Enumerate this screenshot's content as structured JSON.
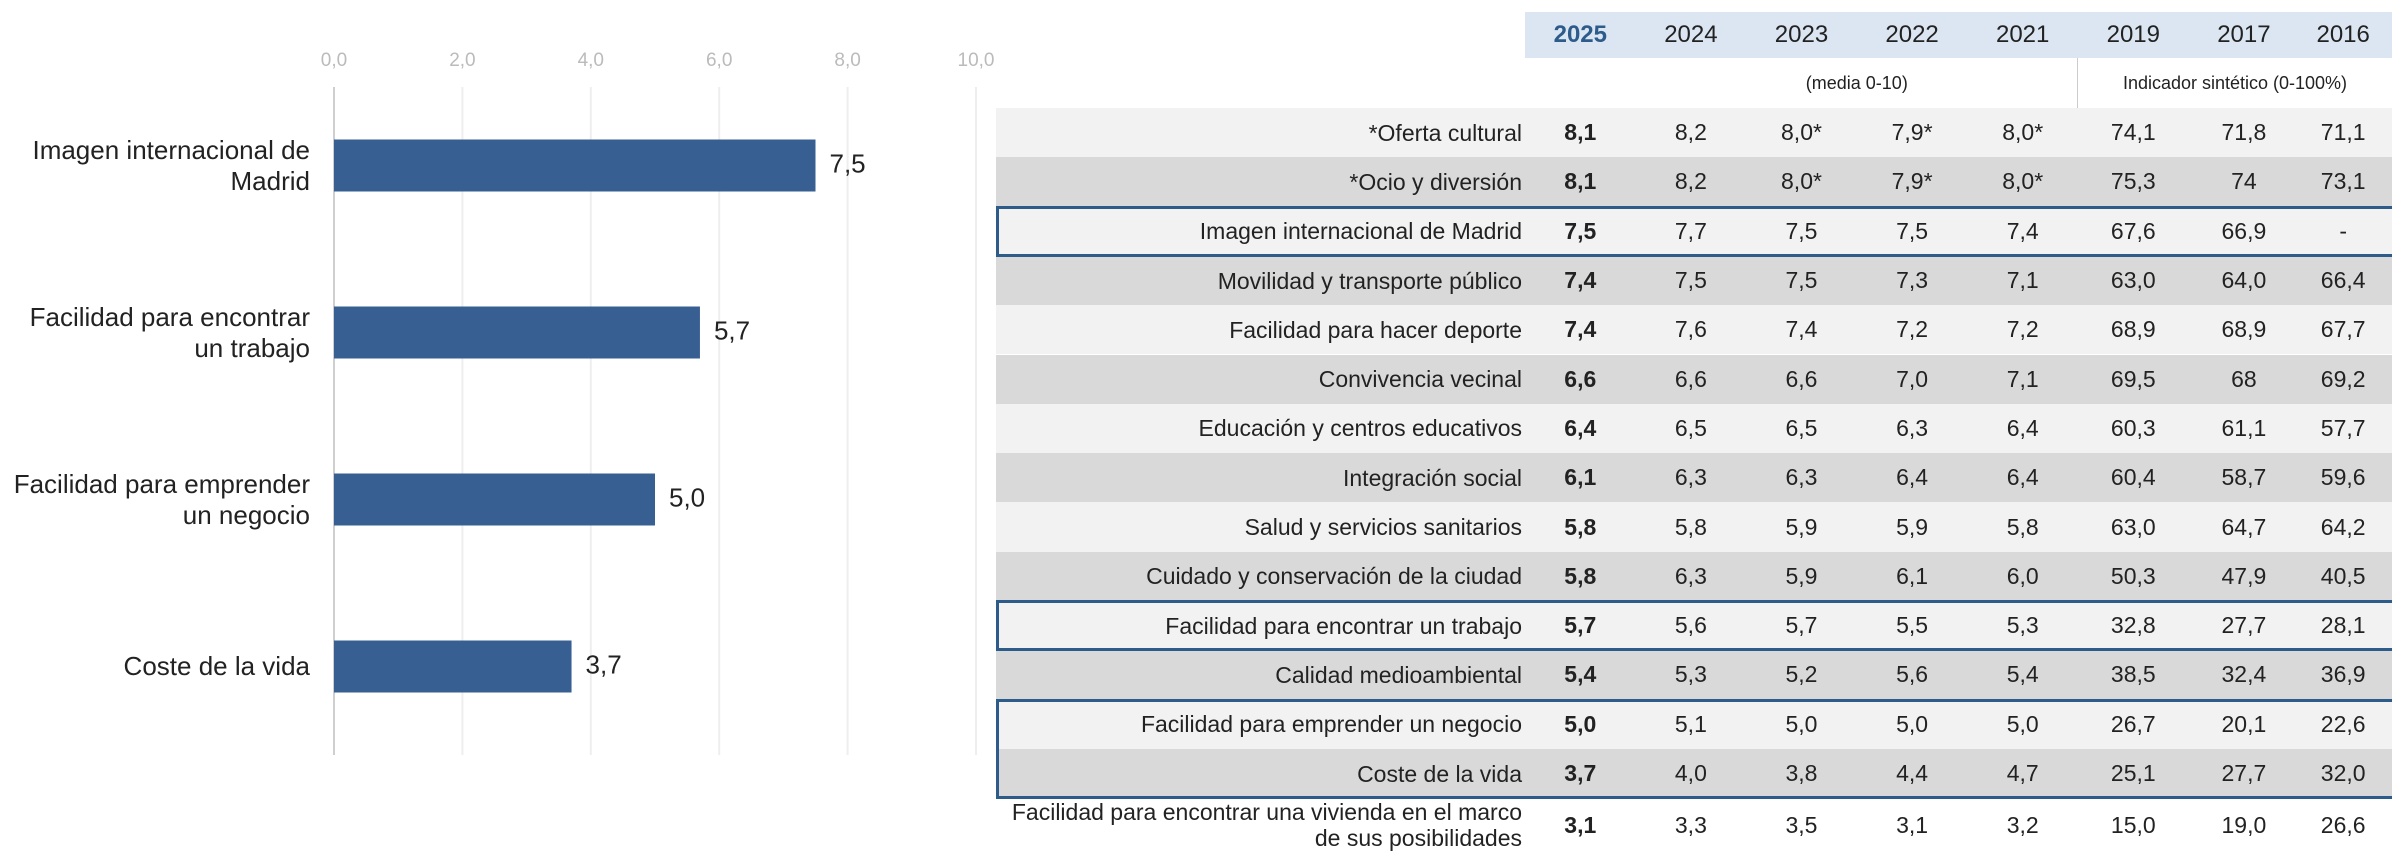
{
  "chart_data": {
    "type": "hbar",
    "categories": [
      "Imagen internacional de Madrid",
      "Facilidad para encontrar un trabajo",
      "Facilidad para emprender un negocio",
      "Coste de la vida"
    ],
    "values": [
      7.5,
      5.7,
      5.0,
      3.7
    ],
    "value_labels": [
      "7,5",
      "5,7",
      "5,0",
      "3,7"
    ],
    "color": "#375f91",
    "xlim": [
      0,
      10
    ],
    "xticks": [
      {
        "value": 0,
        "label": "0,0"
      },
      {
        "value": 2,
        "label": "2,0"
      },
      {
        "value": 4,
        "label": "4,0"
      },
      {
        "value": 6,
        "label": "6,0"
      },
      {
        "value": 8,
        "label": "8,0"
      },
      {
        "value": 10,
        "label": "10,0"
      }
    ],
    "grid": true
  },
  "table": {
    "columns": [
      "2025",
      "2024",
      "2023",
      "2022",
      "2021",
      "2019",
      "2017",
      "2016"
    ],
    "subheaders": [
      "(media 0-10)",
      "Indicador sintético (0-100%)"
    ],
    "rows": [
      {
        "label": "*Oferta cultural",
        "values": [
          "8,1",
          "8,2",
          "8,0*",
          "7,9*",
          "8,0*",
          "74,1",
          "71,8",
          "71,1"
        ]
      },
      {
        "label": "*Ocio y diversión",
        "values": [
          "8,1",
          "8,2",
          "8,0*",
          "7,9*",
          "8,0*",
          "75,3",
          "74",
          "73,1"
        ]
      },
      {
        "label": "Imagen internacional de Madrid",
        "values": [
          "7,5",
          "7,7",
          "7,5",
          "7,5",
          "7,4",
          "67,6",
          "66,9",
          "-"
        ]
      },
      {
        "label": "Movilidad y transporte público",
        "values": [
          "7,4",
          "7,5",
          "7,5",
          "7,3",
          "7,1",
          "63,0",
          "64,0",
          "66,4"
        ]
      },
      {
        "label": "Facilidad para hacer deporte",
        "values": [
          "7,4",
          "7,6",
          "7,4",
          "7,2",
          "7,2",
          "68,9",
          "68,9",
          "67,7"
        ]
      },
      {
        "label": "Convivencia vecinal",
        "values": [
          "6,6",
          "6,6",
          "6,6",
          "7,0",
          "7,1",
          "69,5",
          "68",
          "69,2"
        ]
      },
      {
        "label": "Educación y centros educativos",
        "values": [
          "6,4",
          "6,5",
          "6,5",
          "6,3",
          "6,4",
          "60,3",
          "61,1",
          "57,7"
        ]
      },
      {
        "label": "Integración social",
        "values": [
          "6,1",
          "6,3",
          "6,3",
          "6,4",
          "6,4",
          "60,4",
          "58,7",
          "59,6"
        ]
      },
      {
        "label": "Salud y servicios sanitarios",
        "values": [
          "5,8",
          "5,8",
          "5,9",
          "5,9",
          "5,8",
          "63,0",
          "64,7",
          "64,2"
        ]
      },
      {
        "label": "Cuidado y conservación de la ciudad",
        "values": [
          "5,8",
          "6,3",
          "5,9",
          "6,1",
          "6,0",
          "50,3",
          "47,9",
          "40,5"
        ]
      },
      {
        "label": "Facilidad para encontrar un trabajo",
        "values": [
          "5,7",
          "5,6",
          "5,7",
          "5,5",
          "5,3",
          "32,8",
          "27,7",
          "28,1"
        ]
      },
      {
        "label": "Calidad medioambiental",
        "values": [
          "5,4",
          "5,3",
          "5,2",
          "5,6",
          "5,4",
          "38,5",
          "32,4",
          "36,9"
        ]
      },
      {
        "label": "Facilidad para emprender un negocio",
        "values": [
          "5,0",
          "5,1",
          "5,0",
          "5,0",
          "5,0",
          "26,7",
          "20,1",
          "22,6"
        ]
      },
      {
        "label": "Coste de la vida",
        "values": [
          "3,7",
          "4,0",
          "3,8",
          "4,4",
          "4,7",
          "25,1",
          "27,7",
          "32,0"
        ]
      },
      {
        "label": "Facilidad para encontrar una vivienda en el marco de sus posibilidades",
        "values": [
          "3,1",
          "3,3",
          "3,5",
          "3,1",
          "3,2",
          "15,0",
          "19,0",
          "26,6"
        ]
      }
    ]
  }
}
